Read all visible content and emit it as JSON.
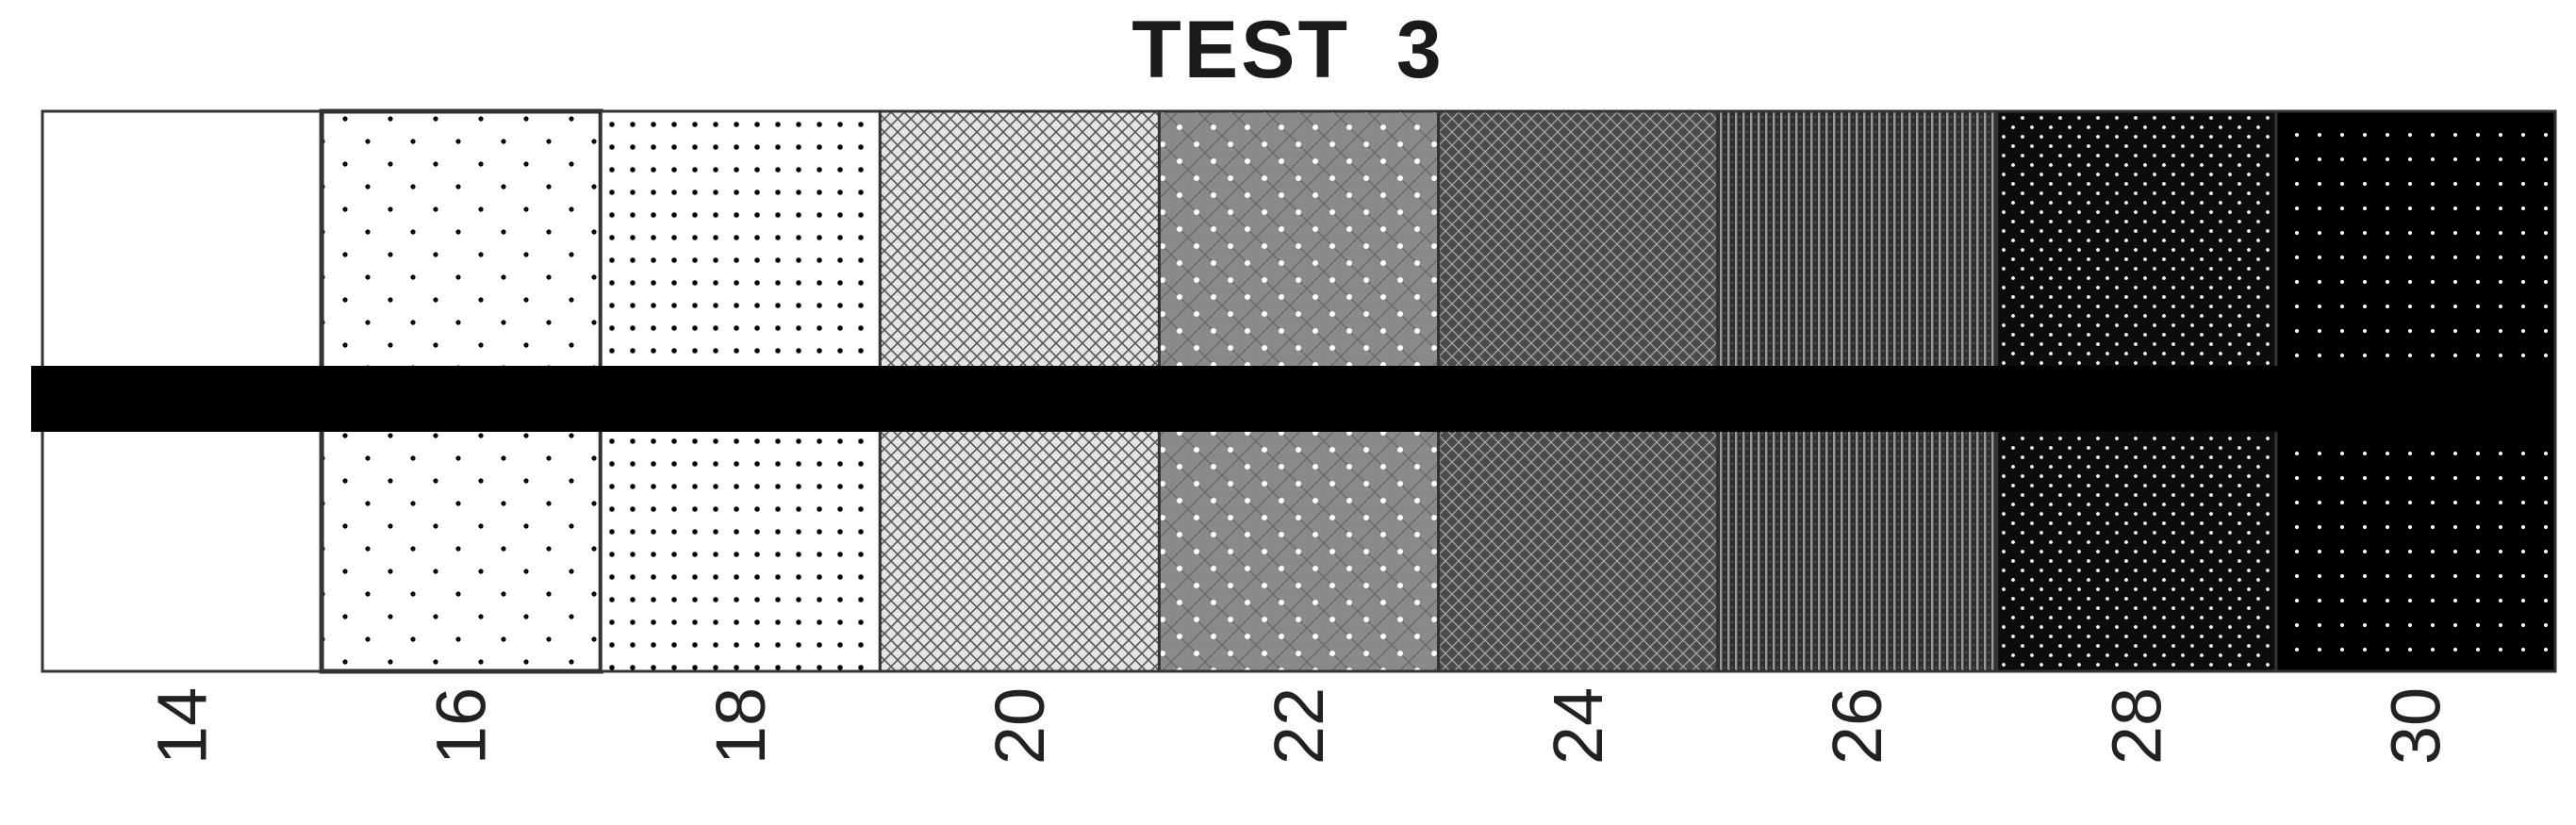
{
  "title": "TEST  3",
  "chart_data": {
    "type": "pattern-swatch-strip",
    "title": "TEST  3",
    "categories": [
      "14",
      "16",
      "18",
      "20",
      "22",
      "24",
      "26",
      "28",
      "30"
    ],
    "values": [
      14,
      16,
      18,
      20,
      22,
      24,
      26,
      28,
      30
    ],
    "orientation_of_labels": "vertical",
    "horizontal_band": true,
    "colors": {
      "ink": "#000000",
      "paper": "#ffffff",
      "outline": "#333333",
      "title": "#1a1a1a"
    }
  }
}
